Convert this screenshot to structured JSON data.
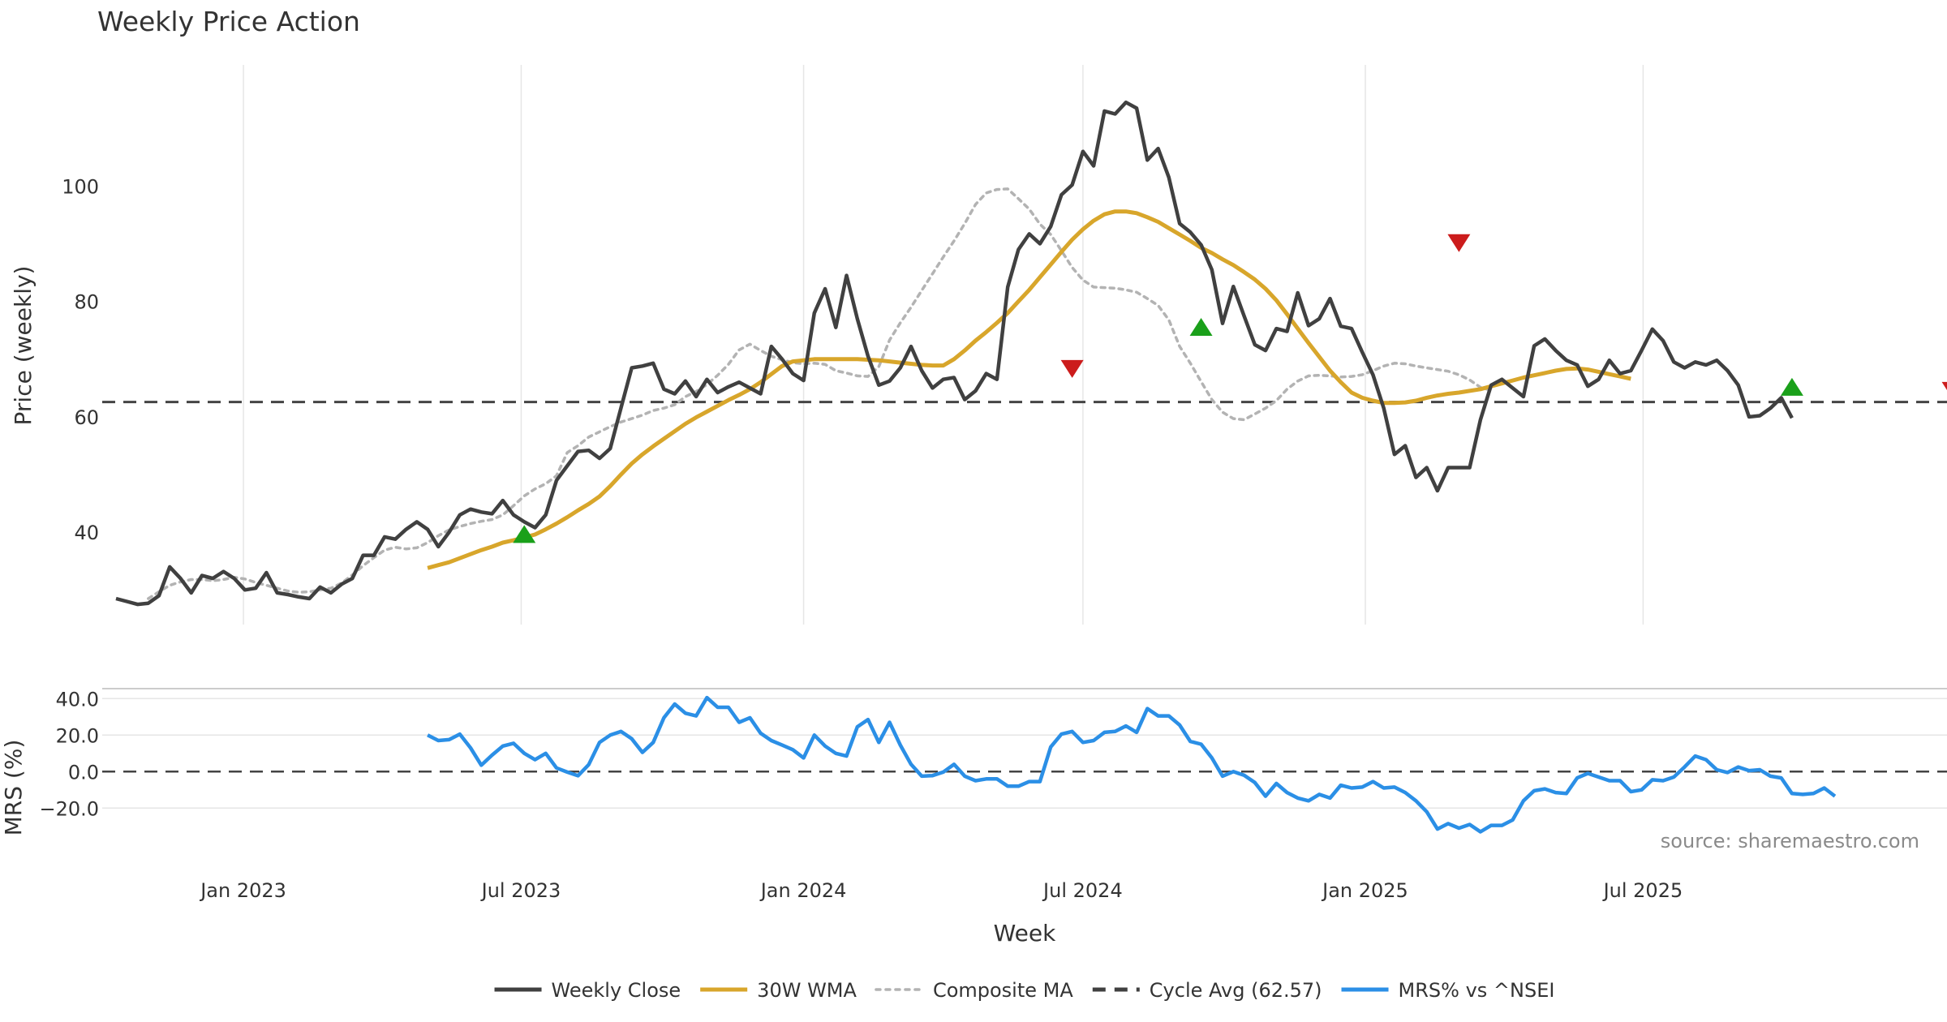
{
  "chart_data": {
    "type": "line",
    "title": "Weekly Price Action",
    "xlabel": "Week",
    "source_note": "source: sharemaestro.com",
    "x_ticks": [
      "Jan 2023",
      "Jul 2023",
      "Jan 2024",
      "Jul 2024",
      "Jan 2025",
      "Jul 2025"
    ],
    "x_start": "2022-10-10",
    "x_step_days": 7,
    "x_range": [
      "2022-10-01",
      "2026-01-15"
    ],
    "price_panel": {
      "ylabel": "Price (weekly)",
      "ylim": [
        24,
        121
      ],
      "yticks": [
        "40",
        "60",
        "80",
        "100"
      ],
      "cycle_avg": 62.57,
      "series": [
        {
          "name": "Weekly Close",
          "color": "#404040",
          "style": "solid",
          "values": [
            28.5,
            28,
            27.5,
            27.7,
            29,
            34,
            32,
            29.5,
            32.5,
            32,
            33.2,
            32,
            30,
            30.3,
            33,
            29.5,
            29.2,
            28.8,
            28.5,
            30.5,
            29.5,
            31,
            32,
            36,
            36,
            39.2,
            38.8,
            40.5,
            41.8,
            40.5,
            37.5,
            40,
            43,
            44,
            43.5,
            43.2,
            45.5,
            43,
            41.8,
            40.8,
            43,
            49,
            51.5,
            54,
            54.2,
            52.8,
            54.5,
            61.5,
            68.5,
            68.8,
            69.3,
            64.8,
            64,
            66.2,
            63.5,
            66.5,
            64.2,
            65.2,
            66,
            65,
            64,
            72.2,
            70,
            67.5,
            66.3,
            78,
            82.2,
            75.5,
            84.5,
            77,
            70.5,
            65.5,
            66.2,
            68.5,
            72.2,
            68,
            65,
            66.5,
            66.8,
            63,
            64.5,
            67.5,
            66.5,
            82.5,
            89,
            91.7,
            90,
            93,
            98.5,
            100.2,
            106,
            103.5,
            113,
            112.5,
            114.5,
            113.5,
            104.5,
            106.5,
            101.5,
            93.5,
            92,
            89.8,
            85.5,
            76.2,
            82.6,
            77.5,
            72.5,
            71.5,
            75.3,
            74.8,
            81.5,
            75.8,
            77,
            80.5,
            75.7,
            75.3,
            71.2,
            67.3,
            61.5,
            53.5,
            55,
            49.5,
            51.2,
            47.2,
            51.2,
            51.2,
            51.2,
            59.5,
            65.5,
            66.5,
            65,
            63.5,
            72.3,
            73.5,
            71.5,
            69.8,
            69,
            65.3,
            66.5,
            69.8,
            67.5,
            68,
            71.5,
            75.2,
            73.2,
            69.5,
            68.5,
            69.5,
            69,
            69.8,
            68,
            65.5,
            60,
            60.2,
            61.5,
            63.3,
            59.8
          ]
        },
        {
          "name": "30W WMA",
          "color": "#d8a62b",
          "style": "solid",
          "start_index": 29,
          "values": [
            33.8,
            34.3,
            34.8,
            35.5,
            36.2,
            36.9,
            37.5,
            38.2,
            38.6,
            39.1,
            39.6,
            40.5,
            41.5,
            42.6,
            43.8,
            44.9,
            46.2,
            48,
            50,
            51.9,
            53.5,
            54.9,
            56.2,
            57.5,
            58.8,
            59.9,
            60.9,
            61.9,
            62.9,
            63.8,
            64.8,
            66,
            67.4,
            68.8,
            69.6,
            69.8,
            70,
            70,
            70,
            70,
            70,
            69.9,
            69.8,
            69.6,
            69.4,
            69.2,
            69,
            68.9,
            68.9,
            70,
            71.5,
            73.2,
            74.7,
            76.3,
            78,
            80,
            82,
            84.2,
            86.4,
            88.6,
            90.7,
            92.5,
            94,
            95.1,
            95.6,
            95.6,
            95.3,
            94.6,
            93.8,
            92.7,
            91.6,
            90.5,
            89.3,
            88.4,
            87.3,
            86.3,
            85.1,
            83.8,
            82.2,
            80.2,
            77.8,
            75.3,
            72.8,
            70.4,
            68,
            66,
            64.2,
            63.3,
            62.8,
            62.4,
            62.4,
            62.5,
            62.8,
            63.3,
            63.7,
            64,
            64.2,
            64.5,
            64.8,
            65.3,
            65.8,
            66.3,
            66.8,
            67.2,
            67.6,
            68,
            68.3,
            68.4,
            68.2,
            67.8,
            67.4,
            67,
            66.6
          ]
        },
        {
          "name": "Composite MA",
          "color": "#b3b3b3",
          "style": "dotted",
          "start_index": 3,
          "values": [
            28.5,
            29.7,
            30.8,
            31.4,
            31.8,
            31.8,
            31.6,
            31.8,
            32.2,
            31.9,
            31.3,
            30.8,
            30.3,
            29.8,
            29.6,
            29.7,
            30,
            30.3,
            31.2,
            32.6,
            34.2,
            35.6,
            36.9,
            37.4,
            37.1,
            37.3,
            38.2,
            39.4,
            40.4,
            41,
            41.5,
            41.9,
            42.2,
            43,
            44.6,
            46.3,
            47.5,
            48.4,
            49.8,
            53.8,
            55,
            56.5,
            57.4,
            58.3,
            59.1,
            59.7,
            60.3,
            61.1,
            61.5,
            62.1,
            63.5,
            64.4,
            65.6,
            67.2,
            69.1,
            71.6,
            72.6,
            71.5,
            70.5,
            69.9,
            69.4,
            69.2,
            69.3,
            69.1,
            68,
            67.6,
            67.1,
            67,
            68.7,
            73.3,
            76.3,
            79,
            81.9,
            84.8,
            87.7,
            90.5,
            93.5,
            96.8,
            98.8,
            99.4,
            99.5,
            97.8,
            96,
            93.4,
            91.6,
            88.8,
            85.9,
            83.7,
            82.5,
            82.4,
            82.3,
            82,
            81.6,
            80.5,
            79.3,
            76.8,
            72.2,
            69.3,
            66.1,
            63,
            60.8,
            59.7,
            59.5,
            60.5,
            61.5,
            62.8,
            64.8,
            66.2,
            67.1,
            67.2,
            67.1,
            66.9,
            67,
            67.3,
            68,
            68.8,
            69.3,
            69.2,
            68.8,
            68.5,
            68.2,
            67.9,
            67.3,
            66.4,
            65.1,
            64.6
          ]
        }
      ],
      "markers": [
        {
          "type": "buy",
          "x_index": 38,
          "value": 39.7,
          "color": "#1aa01a"
        },
        {
          "type": "sell",
          "x_index": 89,
          "value": 68.3,
          "color": "#cc1c1c"
        },
        {
          "type": "buy",
          "x_index": 101,
          "value": 75.6,
          "color": "#1aa01a"
        },
        {
          "type": "sell",
          "x_index": 125,
          "value": 90.1,
          "color": "#cc1c1c"
        },
        {
          "type": "buy",
          "x_index": 156,
          "value": 65.2,
          "color": "#1aa01a"
        },
        {
          "type": "sell",
          "x_index": 171,
          "value": 64.5,
          "color": "#cc1c1c"
        }
      ]
    },
    "mrs_panel": {
      "ylabel": "MRS (%)",
      "ylim": [
        -35,
        45
      ],
      "yticks": [
        "40.0",
        "20.0",
        "0.0",
        "−20.0"
      ],
      "zero_line": 0,
      "series": [
        {
          "name": "MRS% vs ^NSEI",
          "color": "#2b8fe6",
          "style": "solid",
          "start_index": 29,
          "values": [
            20,
            17,
            17.5,
            20.5,
            13,
            3.5,
            9,
            14,
            15.5,
            10,
            6.5,
            10,
            2,
            -0.3,
            -2.3,
            3.8,
            16,
            20,
            22,
            18,
            10.5,
            16,
            29.5,
            37,
            32,
            30.5,
            40.5,
            35.2,
            35.2,
            27,
            29.5,
            21,
            17,
            14.5,
            12,
            7.5,
            20,
            14,
            10,
            8.5,
            24.5,
            28.5,
            16,
            27,
            14.5,
            4,
            -2.5,
            -2.2,
            -0.3,
            4,
            -2.5,
            -5,
            -4,
            -4,
            -8,
            -8,
            -5.5,
            -5.5,
            13.5,
            20.5,
            22,
            16,
            17,
            21.5,
            22,
            25,
            21.5,
            34.5,
            30.5,
            30.5,
            25.5,
            16.5,
            15,
            7.5,
            -2.5,
            0,
            -2,
            -6,
            -13.5,
            -6.5,
            -11.5,
            -14.5,
            -16,
            -12.5,
            -14.5,
            -7.5,
            -9,
            -8.5,
            -5.5,
            -9,
            -8.5,
            -11.5,
            -16,
            -22,
            -31.5,
            -28.5,
            -31,
            -29,
            -33,
            -29.5,
            -29.5,
            -26.5,
            -16,
            -10.5,
            -9.5,
            -11.5,
            -12,
            -3.5,
            -1,
            -3,
            -5,
            -5,
            -11,
            -10,
            -4.5,
            -5,
            -3,
            2.5,
            8.5,
            6.5,
            1,
            -0.5,
            2.5,
            0.5,
            1,
            -2.5,
            -3.5,
            -12,
            -12.5,
            -12,
            -9,
            -13.5
          ]
        }
      ]
    },
    "legend": {
      "placement": "bottom-center",
      "items": [
        {
          "label": "Weekly Close",
          "color": "#404040",
          "style": "solid"
        },
        {
          "label": "30W WMA",
          "color": "#d8a62b",
          "style": "solid"
        },
        {
          "label": "Composite MA",
          "color": "#b3b3b3",
          "style": "dotted"
        },
        {
          "label": "Cycle Avg (62.57)",
          "color": "#404040",
          "style": "dashed"
        },
        {
          "label": "MRS% vs ^NSEI",
          "color": "#2b8fe6",
          "style": "solid"
        }
      ]
    }
  }
}
